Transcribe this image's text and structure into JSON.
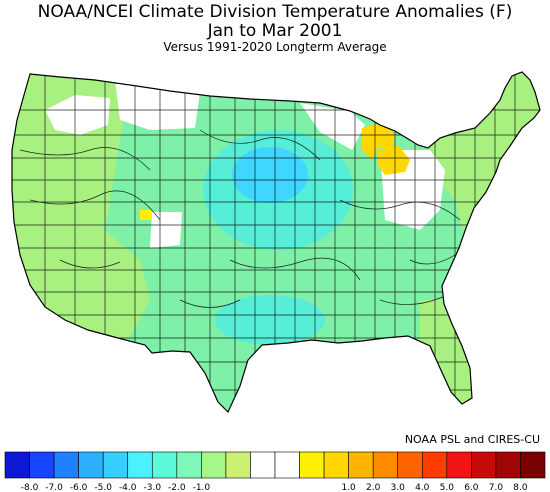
{
  "title": {
    "line1": "NOAA/NCEI Climate Division Temperature Anomalies (F)",
    "line2": "Jan to Mar 2001",
    "line3": "Versus 1991-2020 Longterm Average"
  },
  "credit": "NOAA PSL and CIRES-CU",
  "colorbar": {
    "colors": [
      "#0c18d2",
      "#1644ff",
      "#1e82ff",
      "#2eb0ff",
      "#37cfff",
      "#4df0ff",
      "#5df8d8",
      "#7ef8b8",
      "#a5f787",
      "#ccf070",
      "#ffffff",
      "#ffffff",
      "#fff000",
      "#ffd800",
      "#ffb400",
      "#ff8c00",
      "#ff6400",
      "#ff3c00",
      "#f01414",
      "#c80a0a",
      "#a00505",
      "#780000"
    ],
    "tick_labels": [
      "-8.0",
      "-7.0",
      "-6.0",
      "-5.0",
      "-4.0",
      "-3.0",
      "-2.0",
      "-1.0",
      "1.0",
      "2.0",
      "3.0",
      "4.0",
      "5.0",
      "6.0",
      "7.0",
      "8.0"
    ]
  },
  "map": {
    "land_fill": "#7ef0a8",
    "region_colors": {
      "west_coast": "#a8f080",
      "northern_plains_core": "#3fd6ff",
      "northern_plains_ring": "#57eed8",
      "michigan_warm": "#ffd800",
      "utah_warm": "#fff000",
      "near_normal": "#ffffff"
    }
  }
}
